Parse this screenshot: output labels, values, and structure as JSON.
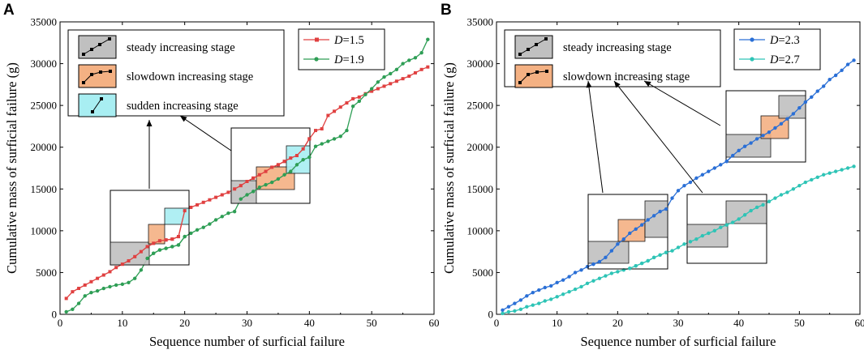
{
  "chart_data": [
    {
      "panel": "A",
      "type": "line",
      "xlabel": "Sequence number of surficial failure",
      "ylabel": "Cumulative mass of surficial failure (g)",
      "xlim": [
        0,
        60
      ],
      "ylim": [
        0,
        35000
      ],
      "xticks": [
        0,
        10,
        20,
        30,
        40,
        50,
        60
      ],
      "yticks": [
        0,
        5000,
        10000,
        15000,
        20000,
        25000,
        30000,
        35000
      ],
      "stage_legend": [
        {
          "label": "steady increasing stage",
          "color": "#c0c0c0"
        },
        {
          "label": "slowdown increasing stage",
          "color": "#f4b183"
        },
        {
          "label": "sudden increasing stage",
          "color": "#a8eef2"
        }
      ],
      "series": [
        {
          "name_prefix": "D",
          "name_suffix": "=1.5",
          "color": "#e04040",
          "marker": "square",
          "x": [
            1,
            2,
            3,
            4,
            5,
            6,
            7,
            8,
            9,
            10,
            11,
            12,
            13,
            14,
            15,
            16,
            17,
            18,
            19,
            20,
            21,
            22,
            23,
            24,
            25,
            26,
            27,
            28,
            29,
            30,
            31,
            32,
            33,
            34,
            35,
            36,
            37,
            38,
            39,
            40,
            41,
            42,
            43,
            44,
            45,
            46,
            47,
            48,
            49,
            50,
            51,
            52,
            53,
            54,
            55,
            56,
            57,
            58,
            59
          ],
          "y": [
            1900,
            2700,
            3100,
            3500,
            3900,
            4300,
            4700,
            5100,
            5600,
            6000,
            6400,
            6900,
            7500,
            8100,
            8500,
            8800,
            8900,
            9000,
            9300,
            12400,
            12800,
            13100,
            13400,
            13700,
            14000,
            14300,
            14600,
            15000,
            15400,
            15900,
            16300,
            16700,
            17100,
            17600,
            17900,
            18300,
            18700,
            19000,
            19800,
            21000,
            22000,
            22200,
            23800,
            24300,
            24800,
            25300,
            25800,
            26000,
            26400,
            26700,
            27000,
            27300,
            27600,
            27900,
            28200,
            28500,
            28900,
            29300,
            29600
          ]
        },
        {
          "name_prefix": "D",
          "name_suffix": "=1.9",
          "color": "#2e9e55",
          "marker": "circle",
          "x": [
            1,
            2,
            3,
            4,
            5,
            6,
            7,
            8,
            9,
            10,
            11,
            12,
            13,
            14,
            15,
            16,
            17,
            18,
            19,
            20,
            21,
            22,
            23,
            24,
            25,
            26,
            27,
            28,
            29,
            30,
            31,
            32,
            33,
            34,
            35,
            36,
            37,
            38,
            39,
            40,
            41,
            42,
            43,
            44,
            45,
            46,
            47,
            48,
            49,
            50,
            51,
            52,
            53,
            54,
            55,
            56,
            57,
            58,
            59
          ],
          "y": [
            300,
            600,
            1300,
            2200,
            2600,
            2800,
            3100,
            3300,
            3500,
            3600,
            3800,
            4300,
            5300,
            6700,
            7300,
            7700,
            7900,
            8100,
            8300,
            9300,
            9700,
            10100,
            10400,
            10800,
            11300,
            11700,
            12100,
            12300,
            13800,
            14300,
            14700,
            15200,
            15500,
            15800,
            16200,
            16700,
            17100,
            17900,
            18500,
            18800,
            20100,
            20400,
            20700,
            21000,
            21300,
            22000,
            24900,
            25500,
            26300,
            27000,
            27800,
            28400,
            28800,
            29300,
            30000,
            30400,
            30700,
            31300,
            32900
          ]
        }
      ],
      "insets": [
        {
          "stages": [
            "steady",
            "slowdown",
            "sudden"
          ]
        },
        {
          "stages": [
            "steady",
            "slowdown",
            "sudden"
          ]
        }
      ]
    },
    {
      "panel": "B",
      "type": "line",
      "xlabel": "Sequence number of surficial failure",
      "ylabel": "Cumulative mass of surficial failure (g)",
      "xlim": [
        0,
        60
      ],
      "ylim": [
        0,
        35000
      ],
      "xticks": [
        0,
        10,
        20,
        30,
        40,
        50,
        60
      ],
      "yticks": [
        0,
        5000,
        10000,
        15000,
        20000,
        25000,
        30000,
        35000
      ],
      "stage_legend": [
        {
          "label": "steady increasing stage",
          "color": "#c0c0c0"
        },
        {
          "label": "slowdown increasing stage",
          "color": "#f4b183"
        }
      ],
      "series": [
        {
          "name_prefix": "D",
          "name_suffix": "=2.3",
          "color": "#2a6fd6",
          "marker": "circle",
          "x": [
            1,
            2,
            3,
            4,
            5,
            6,
            7,
            8,
            9,
            10,
            11,
            12,
            13,
            14,
            15,
            16,
            17,
            18,
            19,
            20,
            21,
            22,
            23,
            24,
            25,
            26,
            27,
            28,
            29,
            30,
            31,
            32,
            33,
            34,
            35,
            36,
            37,
            38,
            39,
            40,
            41,
            42,
            43,
            44,
            45,
            46,
            47,
            48,
            49,
            50,
            51,
            52,
            53,
            54,
            55,
            56,
            57,
            58,
            59
          ],
          "y": [
            500,
            900,
            1300,
            1700,
            2200,
            2600,
            2900,
            3200,
            3400,
            3800,
            4100,
            4500,
            5000,
            5300,
            5700,
            6000,
            6300,
            6800,
            7600,
            8400,
            9000,
            9700,
            10200,
            10700,
            11300,
            11800,
            12300,
            12600,
            13900,
            14800,
            15400,
            15800,
            16300,
            16700,
            17100,
            17500,
            17900,
            18300,
            19000,
            19600,
            20100,
            20500,
            21000,
            21400,
            21800,
            22300,
            22800,
            23400,
            24000,
            24700,
            25400,
            26000,
            26700,
            27300,
            28100,
            28600,
            29200,
            29900,
            30400
          ]
        },
        {
          "name_prefix": "D",
          "name_suffix": "=2.7",
          "color": "#2ec4b6",
          "marker": "circle",
          "x": [
            1,
            2,
            3,
            4,
            5,
            6,
            7,
            8,
            9,
            10,
            11,
            12,
            13,
            14,
            15,
            16,
            17,
            18,
            19,
            20,
            21,
            22,
            23,
            24,
            25,
            26,
            27,
            28,
            29,
            30,
            31,
            32,
            33,
            34,
            35,
            36,
            37,
            38,
            39,
            40,
            41,
            42,
            43,
            44,
            45,
            46,
            47,
            48,
            49,
            50,
            51,
            52,
            53,
            54,
            55,
            56,
            57,
            58,
            59
          ],
          "y": [
            100,
            300,
            400,
            600,
            900,
            1100,
            1300,
            1600,
            1800,
            2100,
            2400,
            2700,
            3000,
            3300,
            3700,
            4000,
            4300,
            4600,
            4900,
            5100,
            5300,
            5500,
            5800,
            6100,
            6400,
            6800,
            7100,
            7400,
            7600,
            8000,
            8400,
            8700,
            9000,
            9400,
            9700,
            10000,
            10400,
            10700,
            11000,
            11400,
            11900,
            12400,
            12800,
            13100,
            13500,
            13900,
            14300,
            14600,
            15000,
            15400,
            15800,
            16100,
            16400,
            16700,
            16900,
            17100,
            17300,
            17500,
            17700
          ]
        }
      ],
      "insets": [
        {
          "stages": [
            "steady",
            "slowdown",
            "steady"
          ]
        },
        {
          "stages": [
            "steady",
            "steady"
          ]
        },
        {
          "stages": [
            "steady",
            "slowdown",
            "steady"
          ]
        }
      ]
    }
  ]
}
